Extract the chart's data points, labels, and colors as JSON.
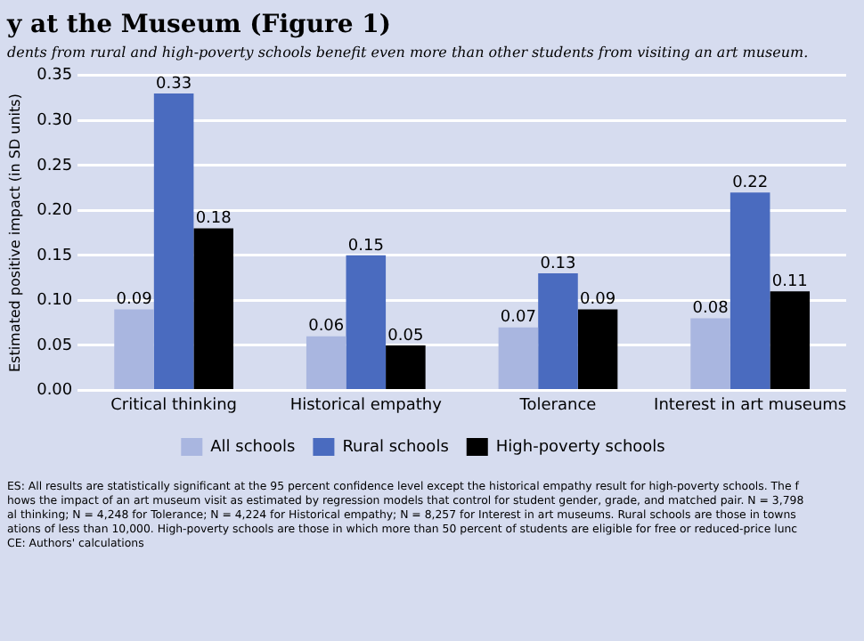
{
  "chart_data": {
    "type": "bar",
    "title": "y at the Museum (Figure 1)",
    "subtitle": "dents from rural and high-poverty schools benefit even more than other students from visiting an art museum.",
    "ylabel": "Estimated positive impact (in SD units)",
    "categories": [
      "Critical thinking",
      "Historical empathy",
      "Tolerance",
      "Interest in art museums"
    ],
    "series": [
      {
        "name": "All schools",
        "color": "#a9b6e0",
        "values": [
          0.09,
          0.06,
          0.07,
          0.08
        ]
      },
      {
        "name": "Rural schools",
        "color": "#4a6bbf",
        "values": [
          0.33,
          0.15,
          0.13,
          0.22
        ]
      },
      {
        "name": "High-poverty schools",
        "color": "#000000",
        "values": [
          0.18,
          0.05,
          0.09,
          0.11
        ]
      }
    ],
    "ylim": [
      0,
      0.35
    ],
    "yticks": [
      "0.00",
      "0.05",
      "0.10",
      "0.15",
      "0.20",
      "0.25",
      "0.30",
      "0.35"
    ],
    "grid": "y",
    "legend": "bottom",
    "data_labels": true,
    "annotations": [
      "ES: All results are statistically significant at the 95 percent confidence level except the historical empathy result for high-poverty schools. The f",
      "hows the impact of an art museum visit as estimated by regression models that control for student gender, grade, and matched pair. N = 3,798",
      "al thinking; N = 4,248 for Tolerance; N = 4,224 for Historical empathy; N = 8,257 for Interest in art museums. Rural schools are those in towns",
      "ations of less than 10,000. High-poverty schools are those in which more than 50 percent of students are eligible for free or reduced-price lunc",
      "CE: Authors' calculations"
    ]
  }
}
